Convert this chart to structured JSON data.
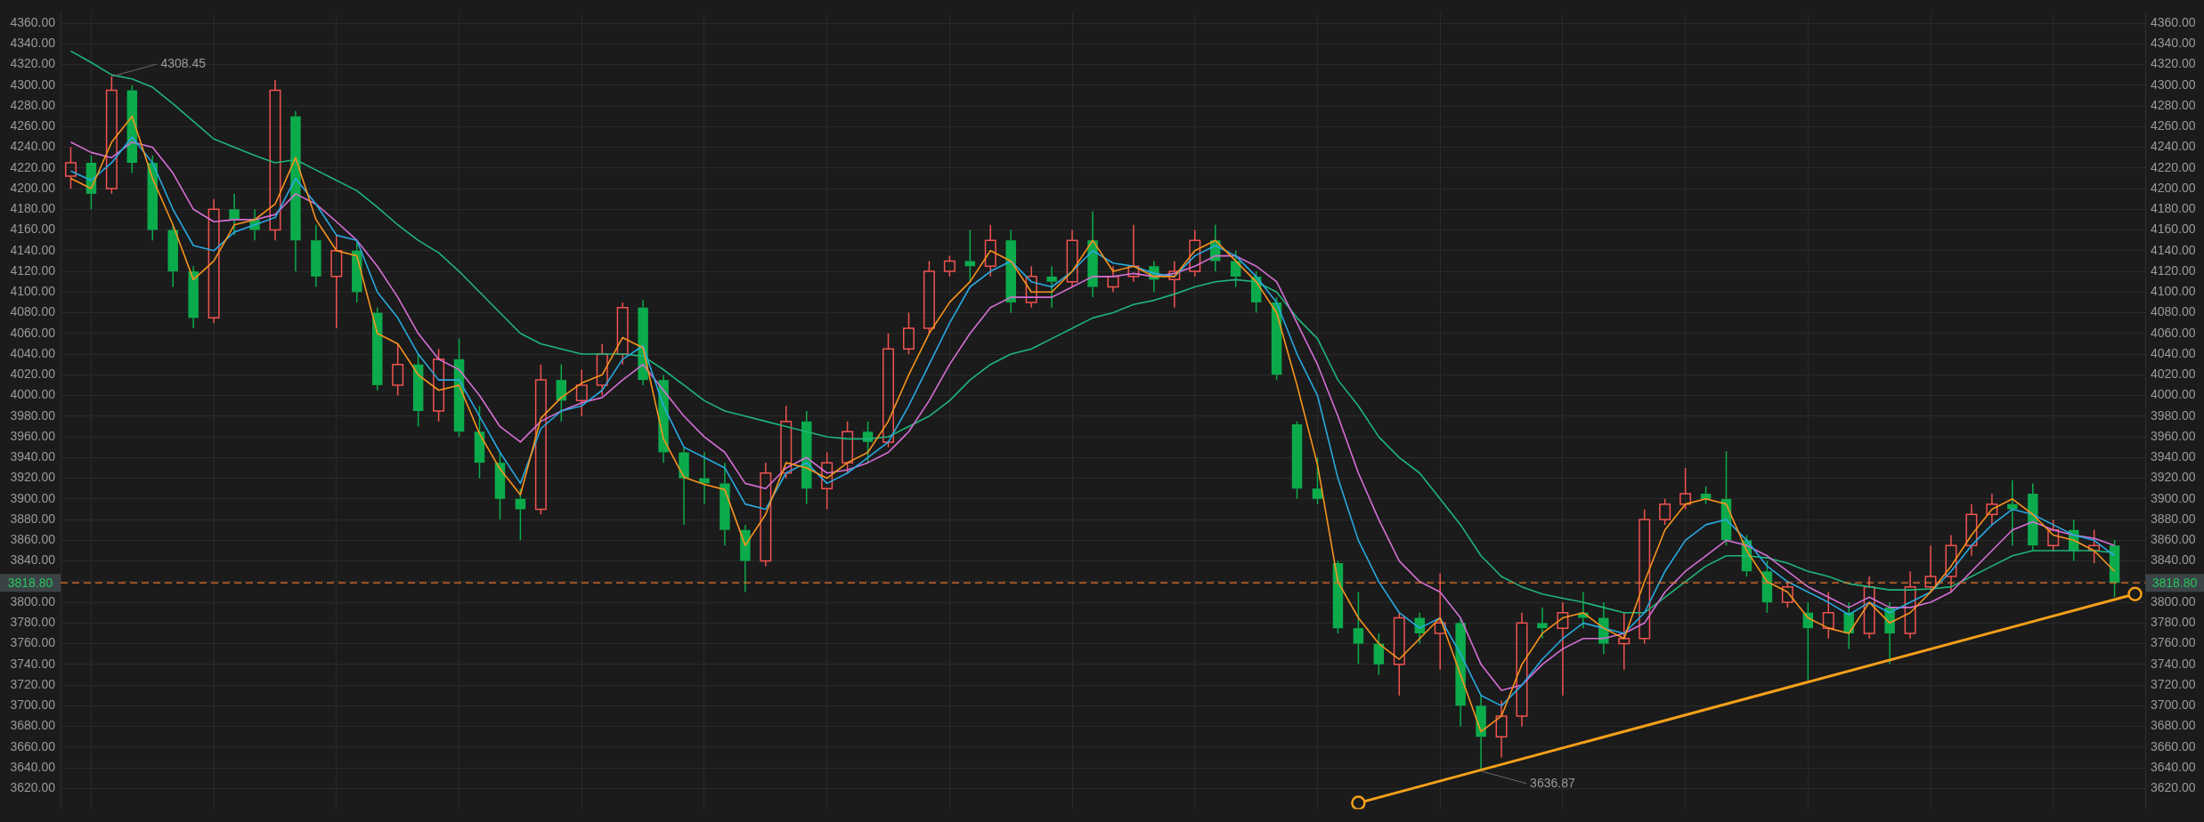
{
  "chart_data": {
    "type": "candlestick",
    "categories": [
      null,
      null,
      null,
      null,
      null,
      null,
      null,
      null,
      null,
      null,
      null,
      null,
      null,
      null,
      null,
      null,
      null,
      null,
      null,
      null,
      null,
      null,
      null,
      null,
      null,
      null,
      null,
      null,
      null,
      null,
      null,
      null,
      null,
      null,
      null,
      null,
      null,
      null,
      null,
      null,
      null,
      null,
      null,
      null,
      null,
      null,
      null,
      null,
      null,
      null,
      null,
      null,
      null,
      null,
      null,
      null,
      null,
      null,
      null,
      null,
      null,
      null,
      null,
      null,
      null,
      null,
      null,
      null,
      null,
      null,
      null,
      null,
      null,
      null,
      null,
      null,
      null,
      null,
      null,
      null,
      null,
      null,
      null,
      null,
      null,
      null,
      null,
      null,
      null,
      null,
      null,
      null,
      null,
      null,
      null,
      null,
      null,
      null,
      null,
      null,
      null,
      null
    ],
    "ohlc": [
      [
        4212,
        4240,
        4200,
        4225
      ],
      [
        4225,
        4232,
        4180,
        4195
      ],
      [
        4200,
        4308.45,
        4195,
        4295
      ],
      [
        4295,
        4300,
        4215,
        4225
      ],
      [
        4225,
        4232,
        4150,
        4160
      ],
      [
        4160,
        4165,
        4105,
        4120
      ],
      [
        4120,
        4125,
        4065,
        4075
      ],
      [
        4075,
        4190,
        4070,
        4180
      ],
      [
        4180,
        4195,
        4155,
        4170
      ],
      [
        4170,
        4180,
        4150,
        4160
      ],
      [
        4160,
        4305,
        4150,
        4295
      ],
      [
        4270,
        4275,
        4120,
        4150
      ],
      [
        4150,
        4165,
        4105,
        4115
      ],
      [
        4115,
        4155,
        4065,
        4140
      ],
      [
        4140,
        4150,
        4090,
        4100
      ],
      [
        4080,
        4085,
        4005,
        4010
      ],
      [
        4010,
        4050,
        4000,
        4030
      ],
      [
        4030,
        4040,
        3970,
        3985
      ],
      [
        3985,
        4045,
        3975,
        4035
      ],
      [
        4035,
        4055,
        3960,
        3965
      ],
      [
        3965,
        3990,
        3920,
        3935
      ],
      [
        3935,
        3945,
        3880,
        3900
      ],
      [
        3900,
        3910,
        3860,
        3890
      ],
      [
        3890,
        4030,
        3885,
        4015
      ],
      [
        4015,
        4030,
        3975,
        3995
      ],
      [
        3995,
        4025,
        3980,
        4010
      ],
      [
        4010,
        4050,
        4000,
        4040
      ],
      [
        4040,
        4090,
        4030,
        4085
      ],
      [
        4085,
        4092,
        4010,
        4015
      ],
      [
        4015,
        4020,
        3935,
        3945
      ],
      [
        3945,
        3950,
        3875,
        3920
      ],
      [
        3920,
        3945,
        3895,
        3915
      ],
      [
        3915,
        3935,
        3855,
        3870
      ],
      [
        3870,
        3875,
        3810,
        3840
      ],
      [
        3840,
        3935,
        3835,
        3925
      ],
      [
        3925,
        3990,
        3920,
        3975
      ],
      [
        3975,
        3985,
        3895,
        3910
      ],
      [
        3910,
        3945,
        3890,
        3935
      ],
      [
        3935,
        3975,
        3925,
        3965
      ],
      [
        3965,
        3975,
        3935,
        3955
      ],
      [
        3955,
        4060,
        3950,
        4045
      ],
      [
        4045,
        4080,
        4040,
        4065
      ],
      [
        4065,
        4130,
        4060,
        4120
      ],
      [
        4120,
        4135,
        4115,
        4130
      ],
      [
        4130,
        4160,
        4110,
        4125
      ],
      [
        4125,
        4165,
        4115,
        4150
      ],
      [
        4150,
        4160,
        4080,
        4090
      ],
      [
        4090,
        4125,
        4085,
        4115
      ],
      [
        4115,
        4125,
        4085,
        4110
      ],
      [
        4110,
        4160,
        4105,
        4150
      ],
      [
        4150,
        4178,
        4095,
        4105
      ],
      [
        4105,
        4125,
        4100,
        4115
      ],
      [
        4115,
        4165,
        4110,
        4125
      ],
      [
        4125,
        4130,
        4100,
        4112
      ],
      [
        4112,
        4130,
        4085,
        4120
      ],
      [
        4120,
        4160,
        4115,
        4150
      ],
      [
        4150,
        4165,
        4120,
        4130
      ],
      [
        4130,
        4140,
        4105,
        4115
      ],
      [
        4115,
        4120,
        4080,
        4090
      ],
      [
        4090,
        4095,
        4015,
        4020
      ],
      [
        3972,
        3975,
        3900,
        3910
      ],
      [
        3910,
        3940,
        3895,
        3900
      ],
      [
        3838,
        3840,
        3770,
        3775
      ],
      [
        3775,
        3810,
        3740,
        3760
      ],
      [
        3760,
        3770,
        3730,
        3740
      ],
      [
        3740,
        3790,
        3710,
        3785
      ],
      [
        3785,
        3790,
        3760,
        3770
      ],
      [
        3770,
        3828,
        3735,
        3780
      ],
      [
        3780,
        3785,
        3680,
        3700
      ],
      [
        3700,
        3710,
        3636.87,
        3670
      ],
      [
        3670,
        3705,
        3650,
        3690
      ],
      [
        3690,
        3790,
        3680,
        3780
      ],
      [
        3780,
        3795,
        3765,
        3775
      ],
      [
        3775,
        3800,
        3710,
        3790
      ],
      [
        3790,
        3810,
        3775,
        3785
      ],
      [
        3785,
        3800,
        3750,
        3760
      ],
      [
        3760,
        3790,
        3735,
        3765
      ],
      [
        3765,
        3890,
        3760,
        3880
      ],
      [
        3880,
        3900,
        3875,
        3895
      ],
      [
        3895,
        3930,
        3890,
        3905
      ],
      [
        3905,
        3912,
        3895,
        3900
      ],
      [
        3900,
        3946,
        3855,
        3860
      ],
      [
        3860,
        3865,
        3825,
        3830
      ],
      [
        3830,
        3840,
        3790,
        3800
      ],
      [
        3800,
        3820,
        3795,
        3815
      ],
      [
        3790,
        3800,
        3725,
        3775
      ],
      [
        3775,
        3810,
        3765,
        3790
      ],
      [
        3790,
        3800,
        3755,
        3770
      ],
      [
        3770,
        3825,
        3765,
        3815
      ],
      [
        3795,
        3800,
        3740,
        3770
      ],
      [
        3770,
        3830,
        3765,
        3815
      ],
      [
        3815,
        3855,
        3810,
        3825
      ],
      [
        3825,
        3865,
        3810,
        3855
      ],
      [
        3855,
        3895,
        3845,
        3885
      ],
      [
        3885,
        3905,
        3875,
        3895
      ],
      [
        3895,
        3918,
        3855,
        3890
      ],
      [
        3905,
        3915,
        3850,
        3855
      ],
      [
        3855,
        3880,
        3850,
        3870
      ],
      [
        3870,
        3880,
        3840,
        3850
      ],
      [
        3850,
        3870,
        3838,
        3855
      ],
      [
        3855,
        3860,
        3805,
        3818.8
      ],
      null
    ],
    "colors": [
      "#ef5350",
      "#0bab4c",
      "#ef5350",
      "#0bab4c",
      "#0bab4c",
      "#0bab4c",
      "#0bab4c",
      "#ef5350",
      "#0bab4c",
      "#0bab4c",
      "#ef5350",
      "#0bab4c",
      "#0bab4c",
      "#ef5350",
      "#0bab4c",
      "#0bab4c",
      "#ef5350",
      "#0bab4c",
      "#ef5350",
      "#0bab4c",
      "#0bab4c",
      "#0bab4c",
      "#0bab4c",
      "#ef5350",
      "#0bab4c",
      "#ef5350",
      "#ef5350",
      "#ef5350",
      "#0bab4c",
      "#0bab4c",
      "#0bab4c",
      "#0bab4c",
      "#0bab4c",
      "#0bab4c",
      "#ef5350",
      "#ef5350",
      "#0bab4c",
      "#ef5350",
      "#ef5350",
      "#0bab4c",
      "#ef5350",
      "#ef5350",
      "#ef5350",
      "#ef5350",
      "#0bab4c",
      "#ef5350",
      "#0bab4c",
      "#ef5350",
      "#0bab4c",
      "#ef5350",
      "#0bab4c",
      "#ef5350",
      "#ef5350",
      "#0bab4c",
      "#ef5350",
      "#ef5350",
      "#0bab4c",
      "#0bab4c",
      "#0bab4c",
      "#0bab4c",
      "#0bab4c",
      "#0bab4c",
      "#0bab4c",
      "#0bab4c",
      "#0bab4c",
      "#ef5350",
      "#0bab4c",
      "#ef5350",
      "#0bab4c",
      "#0bab4c",
      "#ef5350",
      "#ef5350",
      "#0bab4c",
      "#ef5350",
      "#0bab4c",
      "#0bab4c",
      "#ef5350",
      "#ef5350",
      "#ef5350",
      "#ef5350",
      "#0bab4c",
      "#0bab4c",
      "#0bab4c",
      "#0bab4c",
      "#ef5350",
      "#0bab4c",
      "#ef5350",
      "#0bab4c",
      "#ef5350",
      "#0bab4c",
      "#ef5350",
      "#ef5350",
      "#ef5350",
      "#ef5350",
      "#ef5350",
      "#0bab4c",
      "#0bab4c",
      "#ef5350",
      "#0bab4c",
      "#ef5350",
      "#0bab4c",
      null
    ],
    "series": [
      {
        "type": "line",
        "color": "#f7931e",
        "values": [
          4210,
          4200,
          4245,
          4270,
          4210,
          4165,
          4112,
          4130,
          4165,
          4170,
          4185,
          4230,
          4170,
          4140,
          4135,
          4060,
          4050,
          4020,
          4005,
          4010,
          3963,
          3929,
          3904,
          3978,
          3998,
          4012,
          4020,
          4056,
          4046,
          3958,
          3921,
          3914,
          3909,
          3855,
          3885,
          3935,
          3930,
          3920,
          3935,
          3945,
          3975,
          4020,
          4060,
          4090,
          4110,
          4140,
          4130,
          4100,
          4100,
          4120,
          4150,
          4120,
          4125,
          4115,
          4115,
          4140,
          4150,
          4130,
          4110,
          4080,
          4010,
          3933,
          3820,
          3785,
          3760,
          3745,
          3765,
          3785,
          3730,
          3675,
          3690,
          3740,
          3770,
          3785,
          3790,
          3775,
          3765,
          3820,
          3870,
          3895,
          3900,
          3895,
          3850,
          3820,
          3810,
          3785,
          3775,
          3770,
          3800,
          3780,
          3790,
          3810,
          3835,
          3865,
          3890,
          3900,
          3885,
          3865,
          3860,
          3850,
          3830,
          null
        ]
      },
      {
        "type": "line",
        "color": "#29a9e0",
        "values": [
          4217,
          4208,
          4225,
          4250,
          4225,
          4180,
          4145,
          4140,
          4158,
          4165,
          4172,
          4210,
          4185,
          4155,
          4150,
          4100,
          4075,
          4040,
          4015,
          4015,
          3980,
          3945,
          3915,
          3968,
          3985,
          3990,
          4005,
          4035,
          4048,
          3990,
          3950,
          3940,
          3930,
          3895,
          3890,
          3925,
          3935,
          3915,
          3925,
          3940,
          3955,
          3990,
          4030,
          4070,
          4105,
          4120,
          4130,
          4110,
          4105,
          4120,
          4140,
          4128,
          4125,
          4118,
          4115,
          4135,
          4145,
          4135,
          4115,
          4090,
          4040,
          4000,
          3920,
          3860,
          3820,
          3790,
          3775,
          3785,
          3750,
          3710,
          3700,
          3720,
          3745,
          3765,
          3780,
          3775,
          3770,
          3790,
          3830,
          3860,
          3875,
          3880,
          3860,
          3835,
          3820,
          3810,
          3800,
          3788,
          3800,
          3790,
          3800,
          3810,
          3830,
          3855,
          3875,
          3890,
          3885,
          3875,
          3865,
          3860,
          3845,
          null
        ]
      },
      {
        "type": "line",
        "color": "#d56fd5",
        "values": [
          4245,
          4235,
          4230,
          4245,
          4240,
          4215,
          4180,
          4168,
          4170,
          4170,
          4175,
          4195,
          4185,
          4168,
          4150,
          4125,
          4095,
          4060,
          4035,
          4025,
          4000,
          3970,
          3955,
          3975,
          3985,
          3993,
          3998,
          4015,
          4030,
          4005,
          3980,
          3960,
          3945,
          3915,
          3910,
          3930,
          3940,
          3925,
          3928,
          3935,
          3945,
          3965,
          3995,
          4030,
          4060,
          4085,
          4095,
          4095,
          4095,
          4105,
          4115,
          4115,
          4118,
          4115,
          4118,
          4125,
          4135,
          4135,
          4125,
          4110,
          4070,
          4030,
          3980,
          3925,
          3880,
          3840,
          3820,
          3810,
          3785,
          3740,
          3715,
          3720,
          3740,
          3755,
          3765,
          3765,
          3770,
          3780,
          3810,
          3830,
          3845,
          3860,
          3855,
          3845,
          3830,
          3815,
          3805,
          3795,
          3805,
          3795,
          3795,
          3800,
          3810,
          3830,
          3850,
          3870,
          3878,
          3870,
          3865,
          3862,
          3855,
          null
        ]
      },
      {
        "type": "line",
        "color": "#1fb57a",
        "values": [
          4333,
          4322,
          4310,
          4306,
          4298,
          4282,
          4265,
          4248,
          4240,
          4232,
          4225,
          4228,
          4218,
          4208,
          4198,
          4182,
          4165,
          4150,
          4138,
          4120,
          4100,
          4080,
          4060,
          4050,
          4045,
          4040,
          4040,
          4040,
          4038,
          4025,
          4010,
          3995,
          3985,
          3980,
          3975,
          3970,
          3965,
          3960,
          3958,
          3958,
          3960,
          3970,
          3980,
          3995,
          4015,
          4030,
          4040,
          4045,
          4055,
          4065,
          4075,
          4080,
          4088,
          4092,
          4098,
          4105,
          4110,
          4112,
          4110,
          4100,
          4075,
          4055,
          4015,
          3990,
          3960,
          3940,
          3925,
          3900,
          3875,
          3845,
          3825,
          3815,
          3808,
          3804,
          3800,
          3795,
          3790,
          3790,
          3805,
          3820,
          3835,
          3845,
          3845,
          3843,
          3838,
          3830,
          3825,
          3818,
          3815,
          3812,
          3812,
          3813,
          3815,
          3825,
          3835,
          3845,
          3850,
          3850,
          3850,
          3850,
          3848,
          null
        ]
      },
      {
        "type": "line",
        "color": "#f5a01a",
        "marker": "circle",
        "values": [
          null,
          null,
          null,
          null,
          null,
          null,
          null,
          null,
          null,
          null,
          null,
          null,
          null,
          null,
          null,
          null,
          null,
          null,
          null,
          null,
          null,
          null,
          null,
          null,
          null,
          null,
          null,
          null,
          null,
          null,
          null,
          null,
          null,
          null,
          null,
          null,
          null,
          null,
          null,
          null,
          null,
          null,
          null,
          null,
          null,
          null,
          null,
          null,
          null,
          null,
          null,
          null,
          null,
          null,
          null,
          null,
          null,
          null,
          null,
          null,
          null,
          null,
          null,
          3606,
          null,
          null,
          null,
          null,
          null,
          null,
          null,
          null,
          null,
          null,
          null,
          null,
          null,
          null,
          null,
          null,
          null,
          null,
          null,
          null,
          null,
          null,
          null,
          null,
          null,
          null,
          null,
          null,
          null,
          null,
          null,
          null,
          null,
          null,
          null,
          null,
          null,
          3808
        ]
      }
    ],
    "ylim": [
      3600,
      4370
    ],
    "yticks": [
      {
        "value": 3620,
        "label": "3620.00"
      },
      {
        "value": 3640,
        "label": "3640.00"
      },
      {
        "value": 3660,
        "label": "3660.00"
      },
      {
        "value": 3680,
        "label": "3680.00"
      },
      {
        "value": 3700,
        "label": "3700.00"
      },
      {
        "value": 3720,
        "label": "3720.00"
      },
      {
        "value": 3740,
        "label": "3740.00"
      },
      {
        "value": 3760,
        "label": "3760.00"
      },
      {
        "value": 3780,
        "label": "3780.00"
      },
      {
        "value": 3800,
        "label": "3800.00"
      },
      {
        "value": 3820,
        "label": null
      },
      {
        "value": 3840,
        "label": "3840.00"
      },
      {
        "value": 3860,
        "label": "3860.00"
      },
      {
        "value": 3880,
        "label": "3880.00"
      },
      {
        "value": 3900,
        "label": "3900.00"
      },
      {
        "value": 3920,
        "label": "3920.00"
      },
      {
        "value": 3940,
        "label": "3940.00"
      },
      {
        "value": 3960,
        "label": "3960.00"
      },
      {
        "value": 3980,
        "label": "3980.00"
      },
      {
        "value": 4000,
        "label": "4000.00"
      },
      {
        "value": 4020,
        "label": "4020.00"
      },
      {
        "value": 4040,
        "label": "4040.00"
      },
      {
        "value": 4060,
        "label": "4060.00"
      },
      {
        "value": 4080,
        "label": "4080.00"
      },
      {
        "value": 4100,
        "label": "4100.00"
      },
      {
        "value": 4120,
        "label": "4120.00"
      },
      {
        "value": 4140,
        "label": "4140.00"
      },
      {
        "value": 4160,
        "label": "4160.00"
      },
      {
        "value": 4180,
        "label": "4180.00"
      },
      {
        "value": 4200,
        "label": "4200.00"
      },
      {
        "value": 4220,
        "label": "4220.00"
      },
      {
        "value": 4240,
        "label": "4240.00"
      },
      {
        "value": 4260,
        "label": "4260.00"
      },
      {
        "value": 4280,
        "label": "4280.00"
      },
      {
        "value": 4300,
        "label": "4300.00"
      },
      {
        "value": 4320,
        "label": "4320.00"
      },
      {
        "value": 4340,
        "label": "4340.00"
      },
      {
        "value": 4360,
        "label": "4360.00"
      }
    ],
    "y2lim": [
      3600,
      4370
    ],
    "y2ticks": [
      {
        "value": 3620,
        "label": "3620.00"
      },
      {
        "value": 3640,
        "label": "3640.00"
      },
      {
        "value": 3660,
        "label": "3660.00"
      },
      {
        "value": 3680,
        "label": "3680.00"
      },
      {
        "value": 3700,
        "label": "3700.00"
      },
      {
        "value": 3720,
        "label": "3720.00"
      },
      {
        "value": 3740,
        "label": "3740.00"
      },
      {
        "value": 3760,
        "label": "3760.00"
      },
      {
        "value": 3780,
        "label": "3780.00"
      },
      {
        "value": 3800,
        "label": "3800.00"
      },
      {
        "value": 3820,
        "label": null
      },
      {
        "value": 3840,
        "label": "3840.00"
      },
      {
        "value": 3860,
        "label": "3860.00"
      },
      {
        "value": 3880,
        "label": "3880.00"
      },
      {
        "value": 3900,
        "label": "3900.00"
      },
      {
        "value": 3920,
        "label": "3920.00"
      },
      {
        "value": 3940,
        "label": "3940.00"
      },
      {
        "value": 3960,
        "label": "3960.00"
      },
      {
        "value": 3980,
        "label": "3980.00"
      },
      {
        "value": 4000,
        "label": "4000.00"
      },
      {
        "value": 4020,
        "label": "4020.00"
      },
      {
        "value": 4040,
        "label": "4040.00"
      },
      {
        "value": 4060,
        "label": "4060.00"
      },
      {
        "value": 4080,
        "label": "4080.00"
      },
      {
        "value": 4100,
        "label": "4100.00"
      },
      {
        "value": 4120,
        "label": "4120.00"
      },
      {
        "value": 4140,
        "label": "4140.00"
      },
      {
        "value": 4160,
        "label": "4160.00"
      },
      {
        "value": 4180,
        "label": "4180.00"
      },
      {
        "value": 4200,
        "label": "4200.00"
      },
      {
        "value": 4220,
        "label": "4220.00"
      },
      {
        "value": 4240,
        "label": "4240.00"
      },
      {
        "value": 4260,
        "label": "4260.00"
      },
      {
        "value": 4280,
        "label": "4280.00"
      },
      {
        "value": 4300,
        "label": "4300.00"
      },
      {
        "value": 4320,
        "label": "4320.00"
      },
      {
        "value": 4340,
        "label": "4340.00"
      },
      {
        "value": 4360,
        "label": "4360.00"
      }
    ],
    "ref_lines": [
      {
        "axis": "y",
        "value": 3818.8,
        "label": "3818.80",
        "color": "#e8732c",
        "line_style": "dashed"
      }
    ],
    "annotations": [
      "4308.45",
      "3636.87"
    ],
    "grid": true,
    "legend": false,
    "tick_labels": "y"
  }
}
